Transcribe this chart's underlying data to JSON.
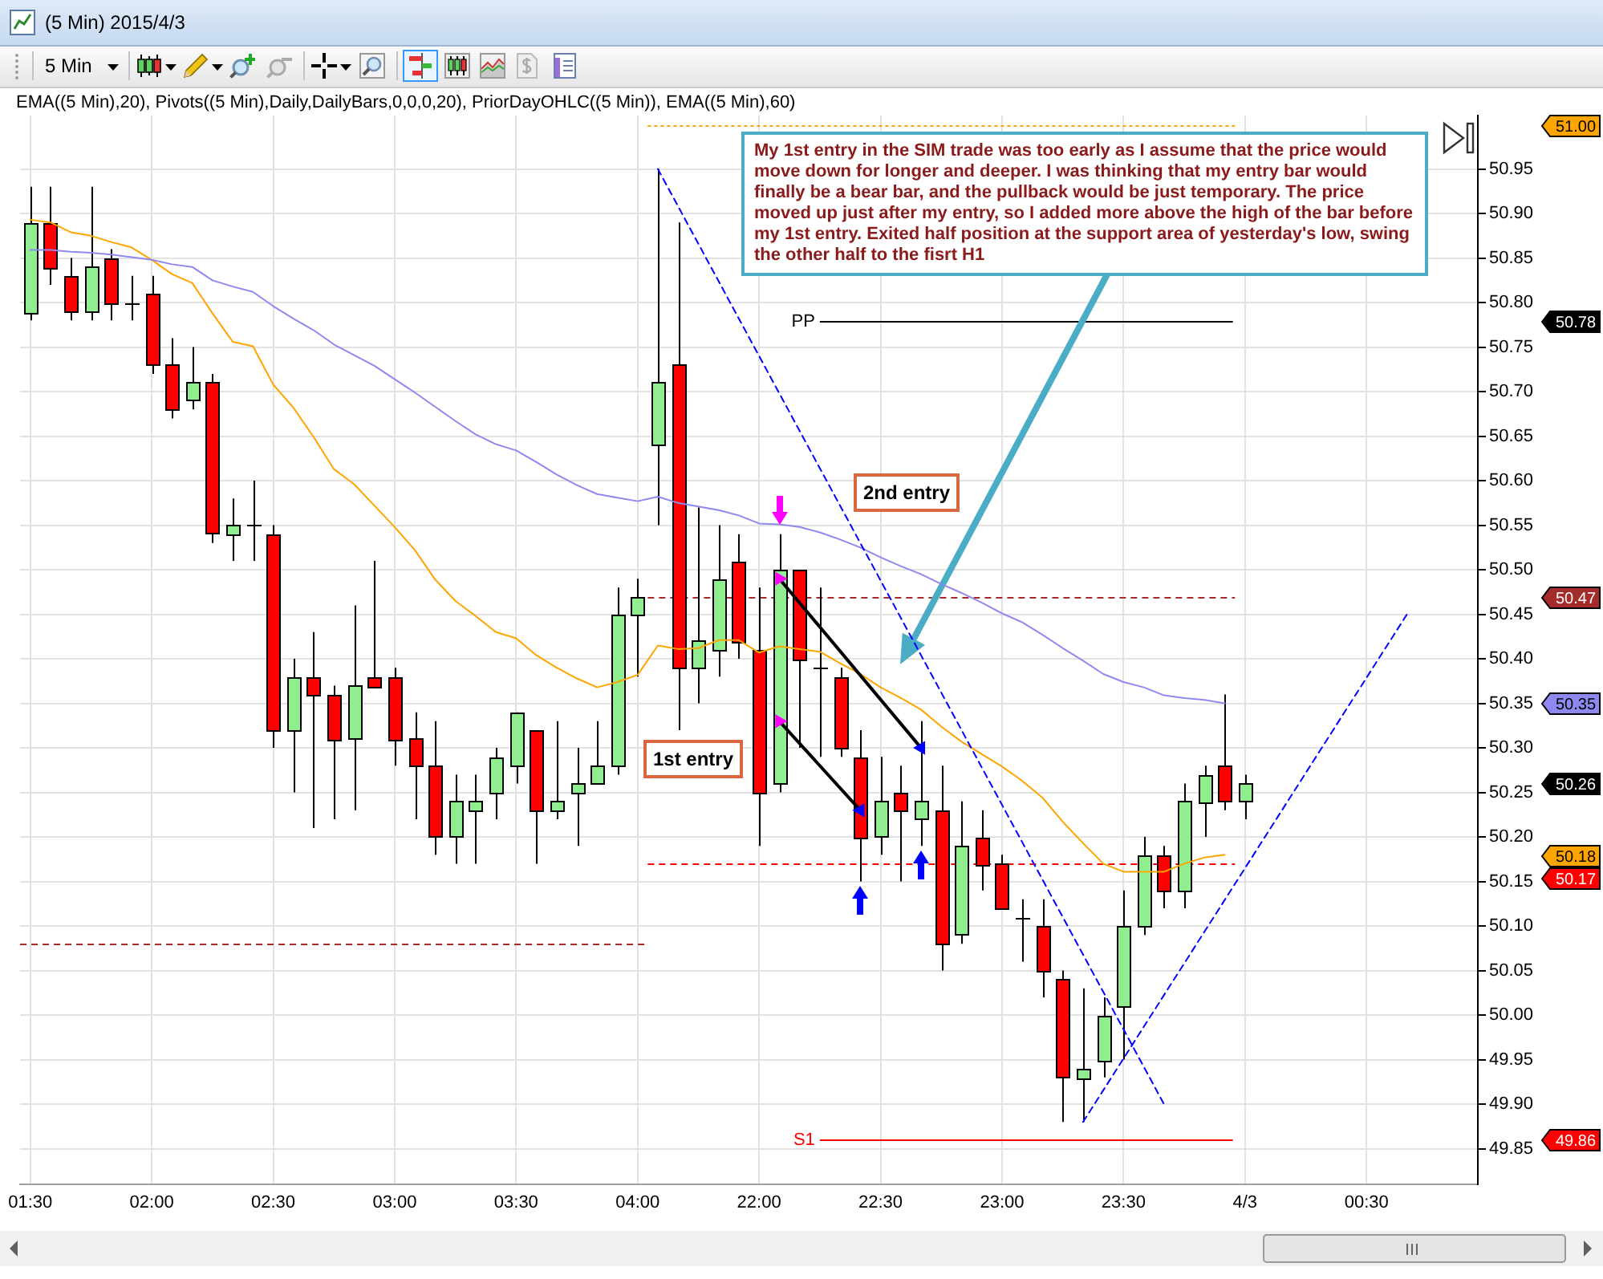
{
  "chart_data": {
    "type": "candlestick",
    "title": "(5 Min) 2015/4/3",
    "subtitle": "EMA((5 Min),20), Pivots((5 Min),Daily,DailyBars,0,0,0,20), PriorDayOHLC((5 Min)), EMA((5 Min),60)",
    "annotations": [
      "5 Min",
      "My 1st entry in the SIM trade was too early as I assume that the price would move down for longer and deeper. I was thinking that my entry bar would finally be a bear bar, and the pullback would be just temporary. The price moved up just after my entry, so I added more above the high of the bar before my 1st entry. Exited half position at the support area of yesterday's low, swing the other half to the fisrt H1",
      "1st entry",
      "2nd entry",
      "51.00",
      "50.78",
      "50.47",
      "50.35",
      "50.26",
      "50.18",
      "50.17",
      "49.86"
    ],
    "categories": [
      "01:30",
      null,
      null,
      null,
      null,
      null,
      "02:00",
      null,
      null,
      null,
      null,
      null,
      "02:30",
      null,
      null,
      null,
      null,
      null,
      "03:00",
      null,
      null,
      null,
      null,
      null,
      "03:30",
      null,
      null,
      null,
      null,
      null,
      "04:00",
      null,
      null,
      null,
      null,
      null,
      "22:00",
      null,
      null,
      null,
      null,
      null,
      "22:30",
      null,
      null,
      null,
      null,
      null,
      "23:00",
      null,
      null,
      null,
      null,
      null,
      "23:30",
      null,
      null,
      null,
      null,
      null,
      "4/3",
      null,
      null,
      null,
      null,
      null,
      "00:30",
      null,
      null,
      null,
      null,
      null
    ],
    "ohlc": [
      [
        50.79,
        50.93,
        50.78,
        50.89
      ],
      [
        50.89,
        50.93,
        50.82,
        50.84
      ],
      [
        50.83,
        50.85,
        50.78,
        50.79
      ],
      [
        50.79,
        50.93,
        50.78,
        50.84
      ],
      [
        50.85,
        50.86,
        50.78,
        50.8
      ],
      [
        50.8,
        50.83,
        50.78,
        50.8
      ],
      [
        50.81,
        50.83,
        50.72,
        50.73
      ],
      [
        50.73,
        50.76,
        50.67,
        50.68
      ],
      [
        50.69,
        50.75,
        50.68,
        50.71
      ],
      [
        50.71,
        50.72,
        50.53,
        50.54
      ],
      [
        50.54,
        50.58,
        50.51,
        50.55
      ],
      [
        50.55,
        50.6,
        50.51,
        50.55
      ],
      [
        50.54,
        50.55,
        50.3,
        50.32
      ],
      [
        50.32,
        50.4,
        50.25,
        50.38
      ],
      [
        50.38,
        50.43,
        50.21,
        50.36
      ],
      [
        50.36,
        50.37,
        50.22,
        50.31
      ],
      [
        50.31,
        50.46,
        50.23,
        50.37
      ],
      [
        50.38,
        50.51,
        50.37,
        50.37
      ],
      [
        50.38,
        50.39,
        50.28,
        50.31
      ],
      [
        50.31,
        50.34,
        50.22,
        50.28
      ],
      [
        50.28,
        50.33,
        50.18,
        50.2
      ],
      [
        50.2,
        50.27,
        50.17,
        50.24
      ],
      [
        50.23,
        50.27,
        50.17,
        50.24
      ],
      [
        50.25,
        50.3,
        50.22,
        50.29
      ],
      [
        50.28,
        50.34,
        50.26,
        50.34
      ],
      [
        50.32,
        50.32,
        50.17,
        50.23
      ],
      [
        50.23,
        50.33,
        50.22,
        50.24
      ],
      [
        50.25,
        50.3,
        50.19,
        50.26
      ],
      [
        50.26,
        50.33,
        50.26,
        50.28
      ],
      [
        50.28,
        50.48,
        50.27,
        50.45
      ],
      [
        50.45,
        50.49,
        50.38,
        50.47
      ],
      [
        50.64,
        50.95,
        50.55,
        50.71
      ],
      [
        50.73,
        50.89,
        50.32,
        50.39
      ],
      [
        50.39,
        50.57,
        50.35,
        50.42
      ],
      [
        50.41,
        50.55,
        50.38,
        50.49
      ],
      [
        50.51,
        50.54,
        50.4,
        50.42
      ],
      [
        50.41,
        50.48,
        50.19,
        50.25
      ],
      [
        50.26,
        50.54,
        50.25,
        50.5
      ],
      [
        50.5,
        50.5,
        50.3,
        50.4
      ],
      [
        50.39,
        50.48,
        50.29,
        50.39
      ],
      [
        50.38,
        50.39,
        50.29,
        50.3
      ],
      [
        50.29,
        50.32,
        50.15,
        50.2
      ],
      [
        50.2,
        50.29,
        50.18,
        50.24
      ],
      [
        50.25,
        50.28,
        50.15,
        50.23
      ],
      [
        50.22,
        50.33,
        50.19,
        50.24
      ],
      [
        50.23,
        50.28,
        50.05,
        50.08
      ],
      [
        50.09,
        50.24,
        50.08,
        50.19
      ],
      [
        50.2,
        50.23,
        50.14,
        50.17
      ],
      [
        50.17,
        50.18,
        50.12,
        50.12
      ],
      [
        50.11,
        50.13,
        50.06,
        50.11
      ],
      [
        50.1,
        50.13,
        50.02,
        50.05
      ],
      [
        50.04,
        50.05,
        49.88,
        49.93
      ],
      [
        49.93,
        50.03,
        49.88,
        49.94
      ],
      [
        49.95,
        50.02,
        49.93,
        50
      ],
      [
        50.01,
        50.14,
        49.95,
        50.1
      ],
      [
        50.1,
        50.2,
        50.09,
        50.18
      ],
      [
        50.18,
        50.19,
        50.12,
        50.14
      ],
      [
        50.14,
        50.26,
        50.12,
        50.24
      ],
      [
        50.24,
        50.28,
        50.2,
        50.27
      ],
      [
        50.28,
        50.36,
        50.23,
        50.24
      ],
      [
        50.24,
        50.27,
        50.22,
        50.26
      ],
      null,
      null,
      null,
      null,
      null,
      null,
      null,
      null,
      null,
      null,
      null
    ],
    "colors": [
      "#90ee90",
      "#ff0000",
      "#ff0000",
      "#90ee90",
      "#ff0000",
      "#000000",
      "#ff0000",
      "#ff0000",
      "#90ee90",
      "#ff0000",
      "#90ee90",
      "#000000",
      "#ff0000",
      "#90ee90",
      "#ff0000",
      "#ff0000",
      "#90ee90",
      "#ff0000",
      "#ff0000",
      "#ff0000",
      "#ff0000",
      "#90ee90",
      "#90ee90",
      "#90ee90",
      "#90ee90",
      "#ff0000",
      "#90ee90",
      "#90ee90",
      "#90ee90",
      "#90ee90",
      "#90ee90",
      "#90ee90",
      "#ff0000",
      "#90ee90",
      "#90ee90",
      "#ff0000",
      "#ff0000",
      "#90ee90",
      "#ff0000",
      "#000000",
      "#ff0000",
      "#ff0000",
      "#90ee90",
      "#ff0000",
      "#90ee90",
      "#ff0000",
      "#90ee90",
      "#ff0000",
      "#ff0000",
      "#000000",
      "#ff0000",
      "#ff0000",
      "#90ee90",
      "#90ee90",
      "#90ee90",
      "#90ee90",
      "#ff0000",
      "#90ee90",
      "#90ee90",
      "#ff0000",
      "#90ee90",
      null,
      null,
      null,
      null,
      null,
      null,
      null,
      null,
      null,
      null,
      null
    ],
    "series": [
      {
        "type": "line",
        "color": "#ffa500",
        "values": [
          50.893,
          50.89,
          50.879,
          50.875,
          50.868,
          50.862,
          50.848,
          50.832,
          50.822,
          50.788,
          50.756,
          50.751,
          50.708,
          50.682,
          50.649,
          50.613,
          50.596,
          50.572,
          50.548,
          50.522,
          50.489,
          50.465,
          50.448,
          50.43,
          50.423,
          50.404,
          50.39,
          50.378,
          50.368,
          50.374,
          50.382,
          50.415,
          50.411,
          50.412,
          50.421,
          50.421,
          50.407,
          50.414,
          50.411,
          50.408,
          50.395,
          50.383,
          50.368,
          50.356,
          50.343,
          50.324,
          50.307,
          50.293,
          50.279,
          50.263,
          50.244,
          50.217,
          50.193,
          50.17,
          50.161,
          50.161,
          50.161,
          50.17,
          50.177,
          50.18,
          null,
          null,
          null,
          null,
          null,
          null,
          null,
          null,
          null,
          null,
          null,
          null
        ]
      },
      {
        "type": "line",
        "color": "#8f88f0",
        "values": [
          50.859,
          50.859,
          50.857,
          50.856,
          50.854,
          50.851,
          50.848,
          50.843,
          50.84,
          50.825,
          50.818,
          50.812,
          50.796,
          50.782,
          50.769,
          50.753,
          50.741,
          50.729,
          50.714,
          50.699,
          50.683,
          50.667,
          50.652,
          50.641,
          50.634,
          50.621,
          50.607,
          50.595,
          50.585,
          50.581,
          50.577,
          50.582,
          50.575,
          50.571,
          50.567,
          50.561,
          50.552,
          50.551,
          50.548,
          50.542,
          50.534,
          50.525,
          50.514,
          50.504,
          50.495,
          50.484,
          50.474,
          50.463,
          50.451,
          50.441,
          50.427,
          50.412,
          50.398,
          50.383,
          50.374,
          50.368,
          50.359,
          50.356,
          50.354,
          50.35,
          null,
          null,
          null,
          null,
          null,
          null,
          null,
          null,
          null,
          null,
          null,
          null
        ]
      },
      {
        "type": "line",
        "color": "#0000ff",
        "line_style": "dashed",
        "values": [
          null,
          null,
          null,
          null,
          null,
          null,
          null,
          null,
          null,
          null,
          null,
          null,
          null,
          null,
          null,
          null,
          null,
          null,
          null,
          null,
          null,
          null,
          null,
          null,
          null,
          null,
          null,
          null,
          null,
          null,
          null,
          50.95,
          null,
          null,
          null,
          null,
          null,
          null,
          null,
          null,
          null,
          null,
          null,
          null,
          null,
          null,
          null,
          null,
          null,
          null,
          null,
          null,
          null,
          null,
          null,
          null,
          49.9,
          null,
          null,
          null,
          null,
          null,
          null,
          null,
          null,
          null,
          null,
          null,
          null,
          null,
          null,
          null
        ]
      },
      {
        "type": "line",
        "color": "#0000ff",
        "line_style": "dashed",
        "values": [
          null,
          null,
          null,
          null,
          null,
          null,
          null,
          null,
          null,
          null,
          null,
          null,
          null,
          null,
          null,
          null,
          null,
          null,
          null,
          null,
          null,
          null,
          null,
          null,
          null,
          null,
          null,
          null,
          null,
          null,
          null,
          null,
          null,
          null,
          null,
          null,
          null,
          null,
          null,
          null,
          null,
          null,
          null,
          null,
          null,
          null,
          null,
          null,
          null,
          null,
          null,
          null,
          49.88,
          null,
          null,
          null,
          null,
          null,
          null,
          null,
          null,
          null,
          null,
          null,
          null,
          null,
          null,
          null,
          50.45,
          null,
          null,
          null
        ]
      },
      {
        "type": "line",
        "color": "#000000",
        "marker": "triangle",
        "values": [
          null,
          null,
          null,
          null,
          null,
          null,
          null,
          null,
          null,
          null,
          null,
          null,
          null,
          null,
          null,
          null,
          null,
          null,
          null,
          null,
          null,
          null,
          null,
          null,
          null,
          null,
          null,
          null,
          null,
          null,
          null,
          null,
          null,
          null,
          null,
          null,
          null,
          50.33,
          null,
          null,
          null,
          50.23,
          null,
          null,
          null,
          null,
          null,
          null,
          null,
          null,
          null,
          null,
          null,
          null,
          null,
          null,
          null,
          null,
          null,
          null,
          null,
          null,
          null,
          null,
          null,
          null,
          null,
          null,
          null,
          null,
          null,
          null
        ],
        "colors": [
          null,
          null,
          null,
          null,
          null,
          null,
          null,
          null,
          null,
          null,
          null,
          null,
          null,
          null,
          null,
          null,
          null,
          null,
          null,
          null,
          null,
          null,
          null,
          null,
          null,
          null,
          null,
          null,
          null,
          null,
          null,
          null,
          null,
          null,
          null,
          null,
          null,
          "#ff00ff",
          null,
          null,
          null,
          "#0000ff",
          null,
          null,
          null,
          null,
          null,
          null,
          null,
          null,
          null,
          null,
          null,
          null,
          null,
          null,
          null,
          null,
          null,
          null,
          null,
          null,
          null,
          null,
          null,
          null,
          null,
          null,
          null,
          null,
          null,
          null
        ]
      },
      {
        "type": "line",
        "color": "#000000",
        "marker": "triangle",
        "values": [
          null,
          null,
          null,
          null,
          null,
          null,
          null,
          null,
          null,
          null,
          null,
          null,
          null,
          null,
          null,
          null,
          null,
          null,
          null,
          null,
          null,
          null,
          null,
          null,
          null,
          null,
          null,
          null,
          null,
          null,
          null,
          null,
          null,
          null,
          null,
          null,
          null,
          50.49,
          null,
          null,
          null,
          null,
          null,
          null,
          50.3,
          null,
          null,
          null,
          null,
          null,
          null,
          null,
          null,
          null,
          null,
          null,
          null,
          null,
          null,
          null,
          null,
          null,
          null,
          null,
          null,
          null,
          null,
          null,
          null,
          null,
          null,
          null
        ],
        "colors": [
          null,
          null,
          null,
          null,
          null,
          null,
          null,
          null,
          null,
          null,
          null,
          null,
          null,
          null,
          null,
          null,
          null,
          null,
          null,
          null,
          null,
          null,
          null,
          null,
          null,
          null,
          null,
          null,
          null,
          null,
          null,
          null,
          null,
          null,
          null,
          null,
          null,
          "#ff00ff",
          null,
          null,
          null,
          null,
          null,
          null,
          "#0000ff",
          null,
          null,
          null,
          null,
          null,
          null,
          null,
          null,
          null,
          null,
          null,
          null,
          null,
          null,
          null,
          null,
          null,
          null,
          null,
          null,
          null,
          null,
          null,
          null,
          null,
          null,
          null
        ]
      }
    ],
    "ylim": [
      49.81,
      51.01
    ],
    "yticks": [
      49.85,
      {
        "value": 49.9,
        "label": "49.90"
      },
      49.95,
      {
        "value": 50,
        "label": "50.00"
      },
      50.05,
      {
        "value": 50.1,
        "label": "50.10"
      },
      50.15,
      {
        "value": 50.2,
        "label": "50.20"
      },
      50.25,
      {
        "value": 50.3,
        "label": "50.30"
      },
      50.35,
      {
        "value": 50.4,
        "label": "50.40"
      },
      50.45,
      {
        "value": 50.5,
        "label": "50.50"
      },
      50.55,
      {
        "value": 50.6,
        "label": "50.60"
      },
      50.65,
      {
        "value": 50.7,
        "label": "50.70"
      },
      50.75,
      {
        "value": 50.8,
        "label": "50.80"
      },
      50.85,
      {
        "value": 50.9,
        "label": "50.90"
      },
      50.95
    ],
    "ref_lines": [
      {
        "axis": "y",
        "value": 51,
        "color": "#ffa500",
        "line_style": "dotted"
      },
      {
        "axis": "y",
        "value": 50.78,
        "label": "PP",
        "color": "#000000",
        "line_style": "solid"
      },
      {
        "axis": "y",
        "value": 50.47,
        "color": "#a52a2a",
        "line_style": "dashed"
      },
      {
        "axis": "y",
        "value": 50.17,
        "color": "#ff0000",
        "line_style": "dashed"
      },
      {
        "axis": "y",
        "value": 50.08,
        "color": "#a52a2a",
        "line_style": "dashed"
      },
      {
        "axis": "y",
        "value": 49.86,
        "label": "S1",
        "color": "#ff0000",
        "line_style": "solid"
      }
    ],
    "grid": true
  }
}
